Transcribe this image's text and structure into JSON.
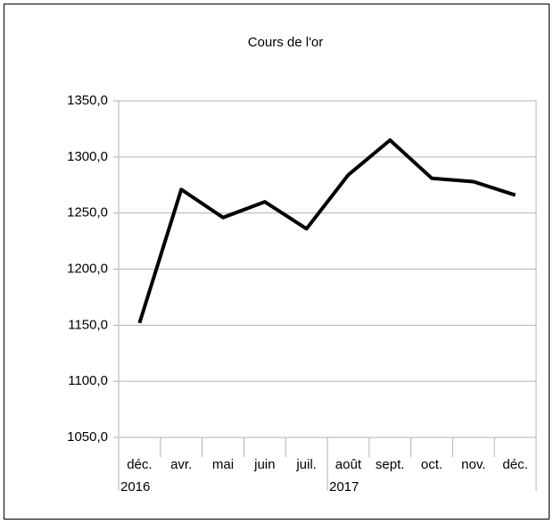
{
  "chart_data": {
    "type": "line",
    "title": "Cours de l'or",
    "categories": [
      "déc.",
      "avr.",
      "mai",
      "juin",
      "juil.",
      "août",
      "sept.",
      "oct.",
      "nov.",
      "déc."
    ],
    "category_groups": [
      "2016",
      null,
      null,
      null,
      null,
      "2017",
      null,
      null,
      null,
      null
    ],
    "series": [
      {
        "name": null,
        "color": "#000000",
        "values": [
          1152,
          1271,
          1246,
          1260,
          1236,
          1284,
          1315,
          1281,
          1278,
          1266
        ]
      }
    ],
    "ylim": [
      1050,
      1350
    ],
    "yticks": [
      {
        "value": 1050,
        "label": "1050,0"
      },
      {
        "value": 1100,
        "label": "1100,0"
      },
      {
        "value": 1150,
        "label": "1150,0"
      },
      {
        "value": 1200,
        "label": "1200,0"
      },
      {
        "value": 1250,
        "label": "1250,0"
      },
      {
        "value": 1300,
        "label": "1300,0"
      },
      {
        "value": 1350,
        "label": "1350,0"
      }
    ],
    "grid": true
  }
}
